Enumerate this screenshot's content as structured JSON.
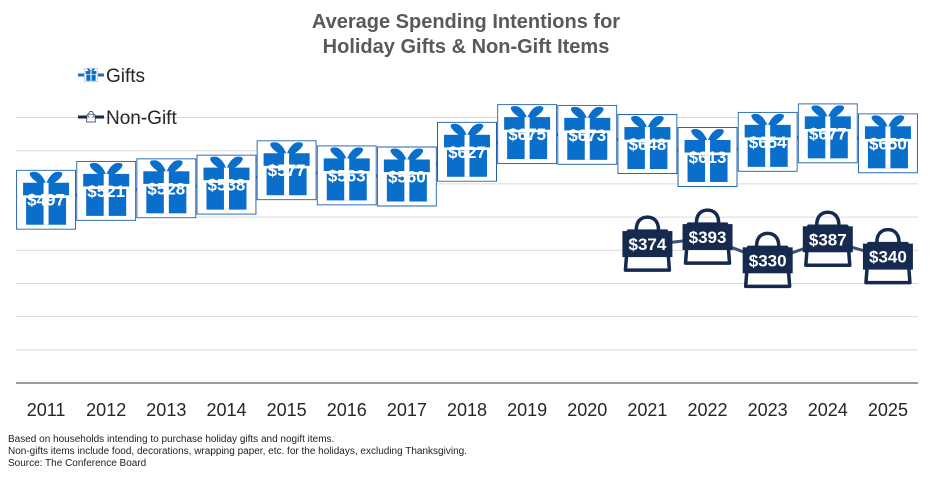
{
  "chart_data": {
    "type": "line",
    "title": "Average Spending Intentions for Holiday Gifts & Non-Gift Items",
    "title_lines": [
      "Average Spending Intentions for",
      "Holiday Gifts & Non-Gift Items"
    ],
    "xlabel": "",
    "ylabel": "",
    "grid": true,
    "legend_position": "top-left",
    "categories": [
      "2011",
      "2012",
      "2013",
      "2014",
      "2015",
      "2016",
      "2017",
      "2018",
      "2019",
      "2020",
      "2021",
      "2022",
      "2023",
      "2024",
      "2025"
    ],
    "ylim": [
      0,
      800
    ],
    "series": [
      {
        "name": "Gifts",
        "color": "#0a6ecb",
        "marker": "gift-box",
        "values": [
          497,
          521,
          528,
          538,
          577,
          563,
          560,
          627,
          675,
          673,
          648,
          613,
          654,
          677,
          650
        ],
        "labels": [
          "$497",
          "$521",
          "$528",
          "$538",
          "$577",
          "$563",
          "$560",
          "$627",
          "$675",
          "$673",
          "$648",
          "$613",
          "$654",
          "$677",
          "$650"
        ]
      },
      {
        "name": "Non-Gift",
        "color": "#16294f",
        "marker": "shopping-bag",
        "values": [
          null,
          null,
          null,
          null,
          null,
          null,
          null,
          null,
          null,
          null,
          374,
          393,
          330,
          387,
          340
        ],
        "labels": [
          "",
          "",
          "",
          "",
          "",
          "",
          "",
          "",
          "",
          "",
          "$374",
          "$393",
          "$330",
          "$387",
          "$340"
        ]
      }
    ]
  },
  "footnotes": [
    "Based on households intending to purchase holiday gifts and nogift items.",
    "Non-gifts items include food, decorations, wrapping paper, etc. for the holidays, excluding Thanksgiving.",
    "Source: The Conference Board"
  ]
}
